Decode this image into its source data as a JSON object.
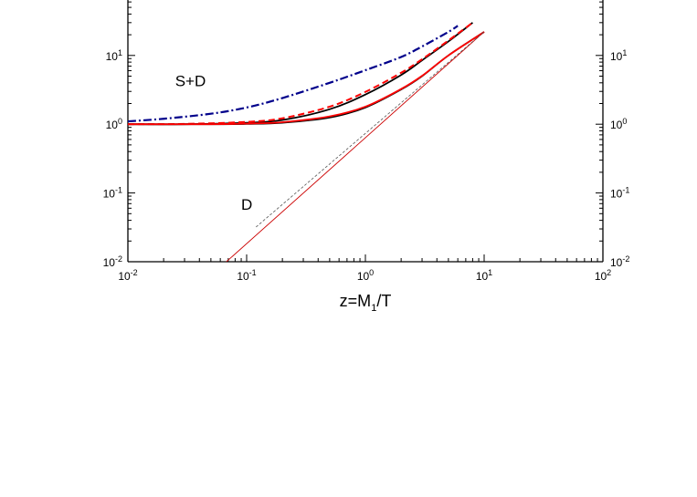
{
  "chart_data": {
    "type": "line",
    "title": "",
    "xlabel": "z=M1/T",
    "ylabel": "",
    "x_scale": "log",
    "y_scale": "log",
    "xlim": [
      0.01,
      100
    ],
    "ylim": [
      0.01,
      100
    ],
    "grid": false,
    "legend": "none",
    "x_ticks": [
      {
        "value": 0.01,
        "base": "10",
        "exp": "-2"
      },
      {
        "value": 0.1,
        "base": "10",
        "exp": "-1"
      },
      {
        "value": 1,
        "base": "10",
        "exp": "0"
      },
      {
        "value": 10,
        "base": "10",
        "exp": "1"
      },
      {
        "value": 100,
        "base": "10",
        "exp": "2"
      }
    ],
    "y_ticks": [
      {
        "value": 0.01,
        "base": "10",
        "exp": "-2"
      },
      {
        "value": 0.1,
        "base": "10",
        "exp": "-1"
      },
      {
        "value": 1,
        "base": "10",
        "exp": "0"
      },
      {
        "value": 10,
        "base": "10",
        "exp": "1"
      }
    ],
    "annotations": [
      {
        "text": "S+D",
        "x": 0.025,
        "y": 3.6
      },
      {
        "text": "D",
        "x": 0.09,
        "y": 0.057
      }
    ],
    "series": [
      {
        "style": "dashdot",
        "color": "#00008b",
        "points": [
          [
            0.01,
            1.1
          ],
          [
            0.02,
            1.2
          ],
          [
            0.05,
            1.42
          ],
          [
            0.1,
            1.75
          ],
          [
            0.2,
            2.4
          ],
          [
            0.5,
            4.0
          ],
          [
            1,
            6.1
          ],
          [
            2,
            9.5
          ],
          [
            3,
            13.5
          ],
          [
            5,
            22
          ],
          [
            6,
            27
          ]
        ]
      },
      {
        "style": "solid",
        "color": "#000000",
        "points": [
          [
            0.01,
            1.0
          ],
          [
            0.03,
            1.0
          ],
          [
            0.1,
            1.05
          ],
          [
            0.2,
            1.15
          ],
          [
            0.5,
            1.65
          ],
          [
            1,
            2.7
          ],
          [
            2,
            5.2
          ],
          [
            3,
            8.5
          ],
          [
            5,
            16
          ],
          [
            8,
            30
          ]
        ]
      },
      {
        "style": "dashed",
        "color": "#ff0000",
        "points": [
          [
            0.01,
            1.0
          ],
          [
            0.03,
            1.01
          ],
          [
            0.1,
            1.08
          ],
          [
            0.2,
            1.22
          ],
          [
            0.5,
            1.8
          ],
          [
            1,
            2.95
          ],
          [
            2,
            5.6
          ],
          [
            3,
            8.8
          ],
          [
            5,
            16.5
          ],
          [
            8,
            30
          ]
        ]
      },
      {
        "style": "solid",
        "color": "#000000",
        "points": [
          [
            0.01,
            1.0
          ],
          [
            0.05,
            1.0
          ],
          [
            0.1,
            1.01
          ],
          [
            0.2,
            1.05
          ],
          [
            0.5,
            1.25
          ],
          [
            1,
            1.75
          ],
          [
            2,
            3.2
          ],
          [
            3,
            5.0
          ],
          [
            5,
            10
          ],
          [
            10,
            22
          ]
        ]
      },
      {
        "style": "solid",
        "color": "#ff0000",
        "points": [
          [
            0.01,
            1.0
          ],
          [
            0.05,
            1.0
          ],
          [
            0.1,
            1.02
          ],
          [
            0.2,
            1.07
          ],
          [
            0.5,
            1.3
          ],
          [
            1,
            1.8
          ],
          [
            2,
            3.25
          ],
          [
            3,
            5.05
          ],
          [
            5,
            10
          ],
          [
            10,
            22
          ]
        ]
      },
      {
        "style": "thin",
        "color": "#cc0000",
        "points": [
          [
            0.0675,
            0.01
          ],
          [
            10,
            22.1
          ]
        ]
      },
      {
        "style": "thin-dashed",
        "color": "#555555",
        "points": [
          [
            0.12,
            0.032
          ],
          [
            10,
            22.1
          ]
        ]
      }
    ]
  }
}
